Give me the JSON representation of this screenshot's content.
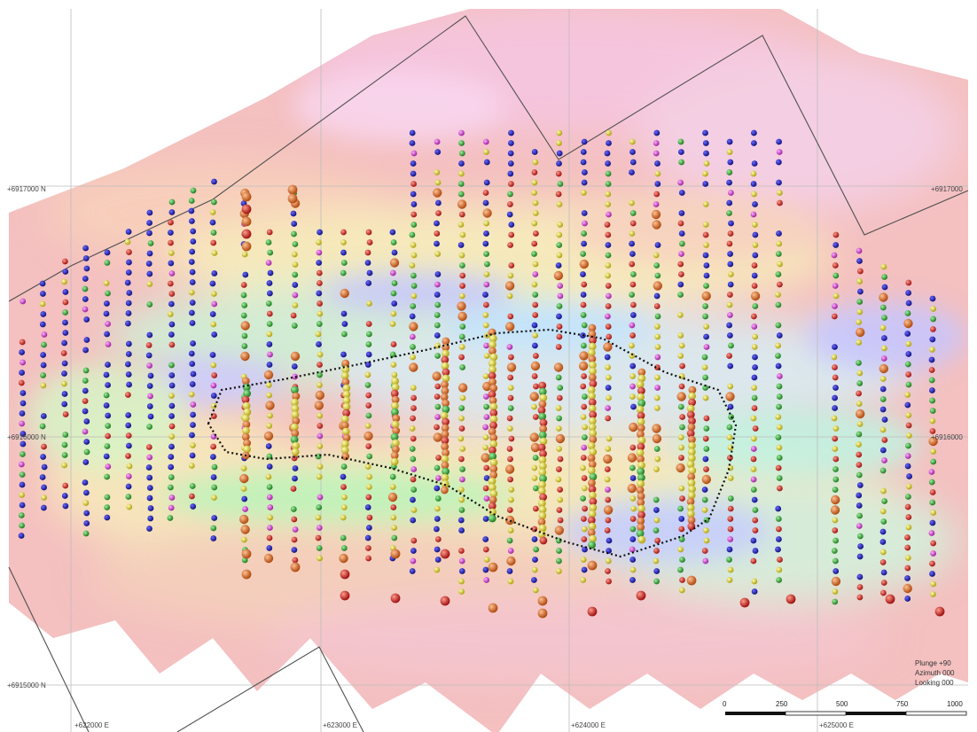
{
  "grid_labels": {
    "north_top_left": "+6917000 N",
    "north_top_right": "+6917000",
    "north_mid_left": "+6916000 N",
    "north_mid_right": "+6916000",
    "north_bottom_left": "+6915000 N",
    "east_1": "+622000 E",
    "east_2": "+623000 E",
    "east_3": "+624000 E",
    "east_4": "+625000 E"
  },
  "view_info": {
    "plunge": "Plunge +90",
    "azimuth": "Azimuth 000",
    "looking": "Looking 000"
  },
  "scale_bar": {
    "labels": [
      "0",
      "250",
      "500",
      "750",
      "1000"
    ]
  },
  "legend_colors": {
    "low": "#1a1a9e",
    "mid_low": "#2fa52f",
    "mid": "#e0d22a",
    "high": "#d8231a",
    "anomalous": "#cc33cc",
    "intercept": "#e0781f"
  }
}
